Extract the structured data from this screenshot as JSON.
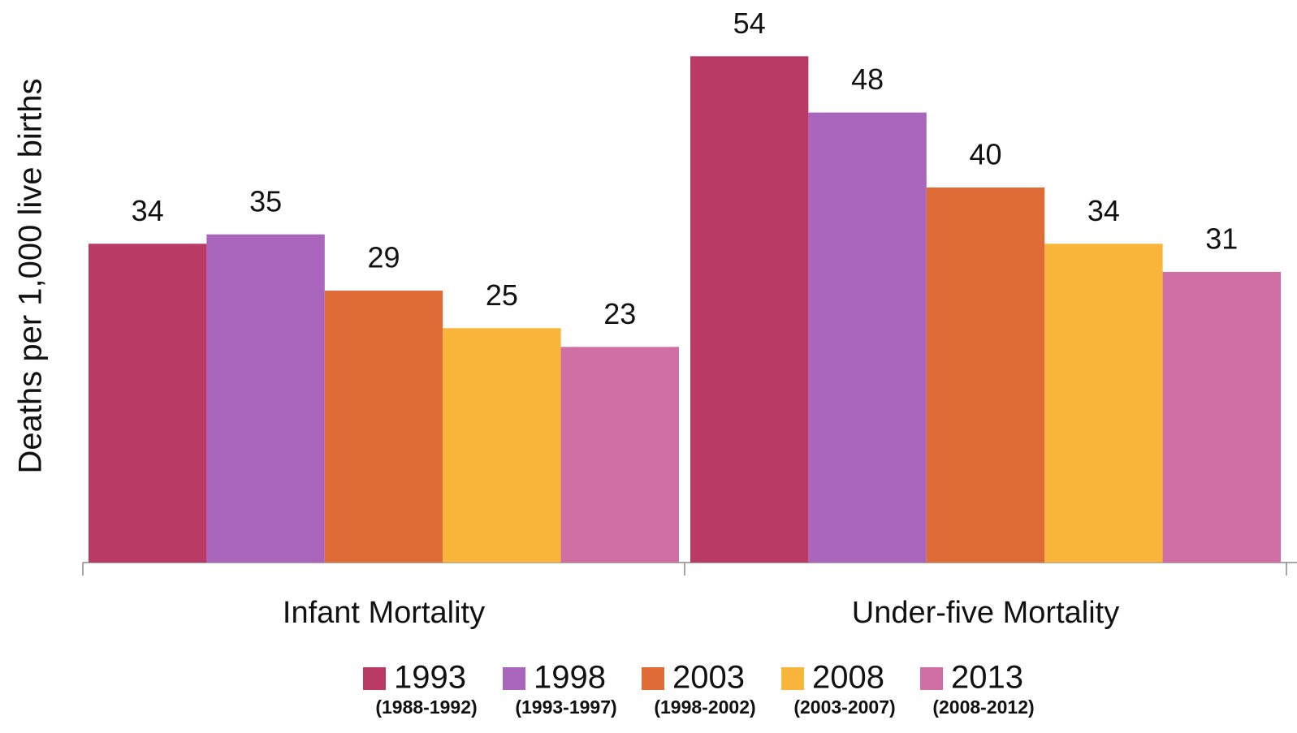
{
  "chart_data": {
    "type": "bar",
    "y_label": "Deaths per 1,000 live births",
    "categories": [
      "Infant Mortality",
      "Under-five Mortality"
    ],
    "series": [
      {
        "name": "1993",
        "period": "(1988-1992)",
        "color": "#b83a65",
        "values": [
          34,
          54
        ]
      },
      {
        "name": "1998",
        "period": "(1993-1997)",
        "color": "#aa66bd",
        "values": [
          35,
          48
        ]
      },
      {
        "name": "2003",
        "period": "(1998-2002)",
        "color": "#df6c36",
        "values": [
          29,
          40
        ]
      },
      {
        "name": "2008",
        "period": "(2003-2007)",
        "color": "#f8b53a",
        "values": [
          25,
          34
        ]
      },
      {
        "name": "2013",
        "period": "(2008-2012)",
        "color": "#d06fa3",
        "values": [
          23,
          31
        ]
      }
    ],
    "ylim": [
      0,
      60
    ]
  }
}
